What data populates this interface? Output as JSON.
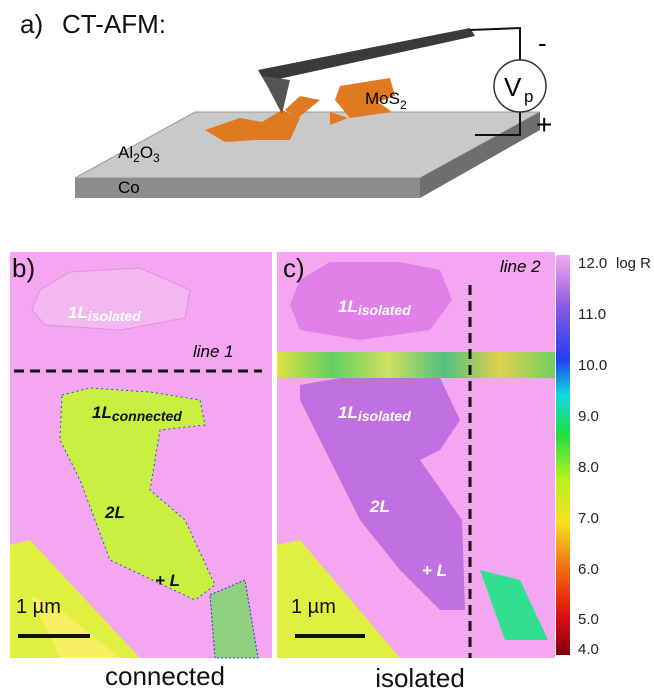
{
  "panel_a": {
    "label": "a)",
    "title": "CT-AFM:",
    "minus": "-",
    "plus": "+",
    "voltage": "V",
    "voltage_sub": "p",
    "material": "MoS",
    "material_sub": "2",
    "oxide": [
      "Al",
      "2",
      "O",
      "3"
    ],
    "substrate": "Co"
  },
  "panel_b": {
    "label": "b)",
    "line": "line 1",
    "regions": [
      {
        "main": "1L",
        "sub": "isolated"
      },
      {
        "main": "1L",
        "sub": "connected"
      },
      {
        "main": "2L"
      },
      {
        "main": "+ L"
      }
    ],
    "scale": "1 µm",
    "caption": "connected"
  },
  "panel_c": {
    "label": "c)",
    "line": "line 2",
    "regions": [
      {
        "main": "1L",
        "sub": "isolated"
      },
      {
        "main": "1L",
        "sub": "isolated"
      },
      {
        "main": "2L"
      },
      {
        "main": "+ L"
      }
    ],
    "scale": "1 µm",
    "caption": "isolated"
  },
  "colorbar": {
    "ticks": [
      "12.0",
      "11.0",
      "10.0",
      "9.0",
      "8.0",
      "7.0",
      "6.0",
      "5.0",
      "4.0"
    ],
    "unit": "log R"
  }
}
